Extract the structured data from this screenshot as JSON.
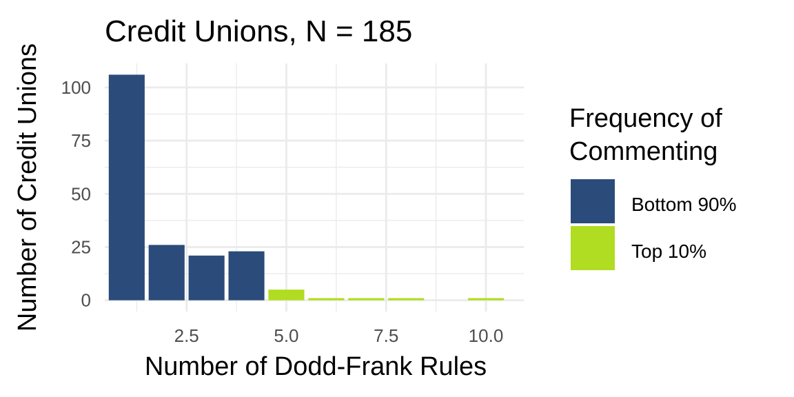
{
  "chart_data": {
    "type": "bar",
    "title": "Credit Unions, N = 185",
    "xlabel": "Number of Dodd-Frank Rules",
    "ylabel": "Number of Credit Unions",
    "xlim": [
      0.45,
      10.95
    ],
    "ylim": [
      -5.3,
      111.3
    ],
    "x_ticks": [
      2.5,
      5.0,
      7.5,
      10.0
    ],
    "x_tick_labels": [
      "2.5",
      "5.0",
      "7.5",
      "10.0"
    ],
    "y_ticks": [
      0,
      25,
      50,
      75,
      100
    ],
    "y_tick_labels": [
      "0",
      "25",
      "50",
      "75",
      "100"
    ],
    "grid": true,
    "legend": {
      "title_lines": [
        "Frequency of",
        "Commenting"
      ],
      "position": "right",
      "items": [
        {
          "label": "Bottom 90%",
          "color": "#2b4c7a"
        },
        {
          "label": "Top 10%",
          "color": "#b0dc21"
        }
      ]
    },
    "series": [
      {
        "name": "Bottom 90%",
        "color": "#2b4c7a",
        "points": [
          {
            "x": 1,
            "y": 106
          },
          {
            "x": 2,
            "y": 26
          },
          {
            "x": 3,
            "y": 21
          },
          {
            "x": 4,
            "y": 23
          }
        ]
      },
      {
        "name": "Top 10%",
        "color": "#b0dc21",
        "points": [
          {
            "x": 5,
            "y": 5
          },
          {
            "x": 6,
            "y": 1
          },
          {
            "x": 7,
            "y": 1
          },
          {
            "x": 8,
            "y": 1
          },
          {
            "x": 10,
            "y": 1
          }
        ]
      }
    ]
  }
}
